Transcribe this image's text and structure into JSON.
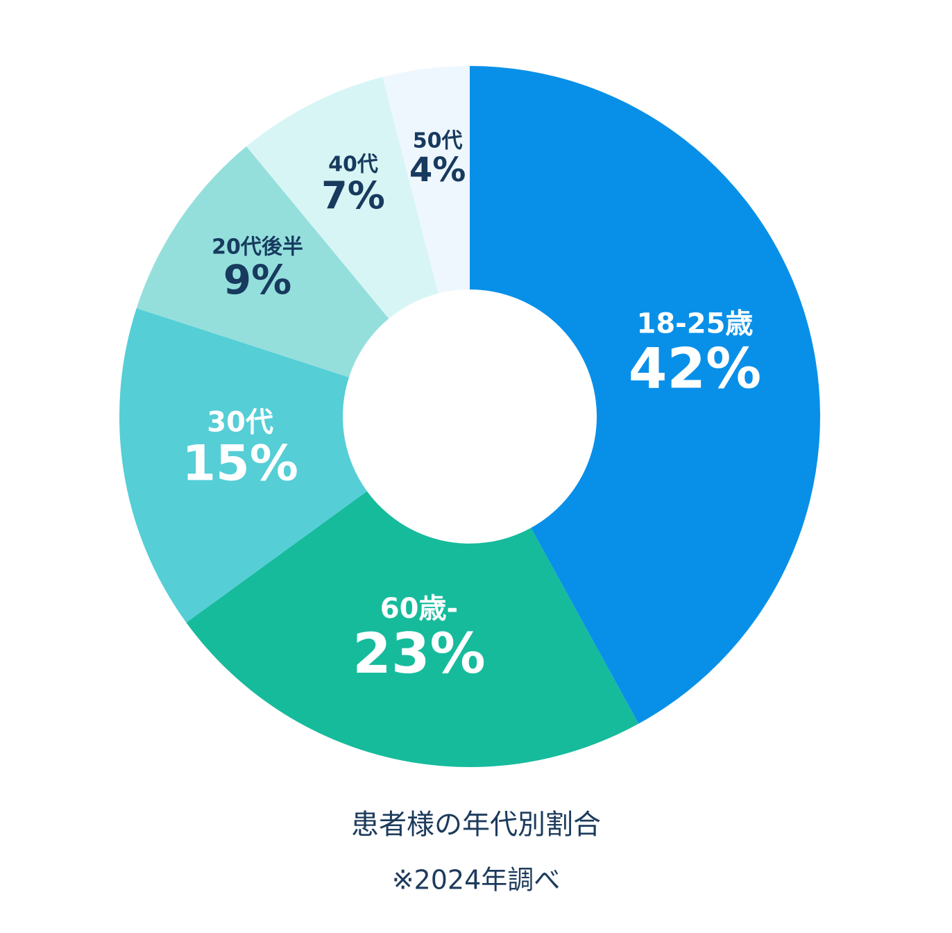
{
  "chart_data": {
    "type": "donut",
    "title": "患者様の年代別割合",
    "subtitle": "※2024年調べ",
    "categories": [
      "18-25歳",
      "60歳-",
      "30代",
      "20代後半",
      "40代",
      "50代"
    ],
    "values": [
      42,
      23,
      15,
      9,
      7,
      4
    ],
    "value_labels": [
      "42%",
      "23%",
      "15%",
      "9%",
      "7%",
      "4%"
    ],
    "colors": [
      "#0890e8",
      "#16bb9c",
      "#55ced6",
      "#94dfdc",
      "#d8f5f5",
      "#eef7fd"
    ],
    "label_colors": [
      "#ffffff",
      "#ffffff",
      "#ffffff",
      "#173a5e",
      "#173a5e",
      "#173a5e"
    ]
  }
}
